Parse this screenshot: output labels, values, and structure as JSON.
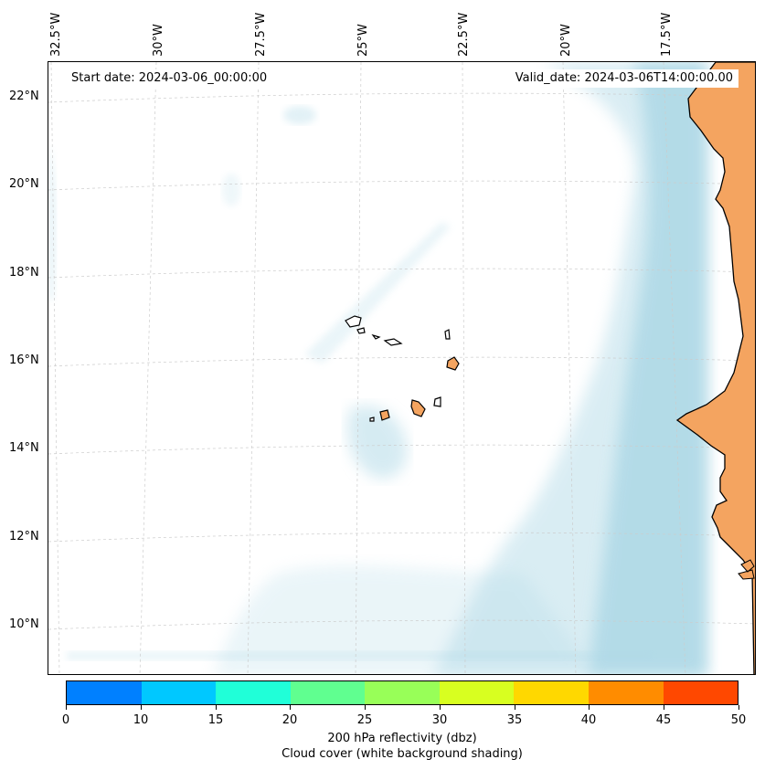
{
  "map": {
    "start_date": "Start date: 2024-03-06_00:00:00",
    "valid_date": "Valid_date: 2024-03-06T14:00:00.00",
    "lon_labels": [
      "32.5°W",
      "30°W",
      "27.5°W",
      "25°W",
      "22.5°W",
      "20°W",
      "17.5°W"
    ],
    "lat_labels": [
      "22°N",
      "20°N",
      "18°N",
      "16°N",
      "14°N",
      "12°N",
      "10°N"
    ],
    "colors": {
      "land": "#f4a460",
      "cloud": "#add8e6",
      "coast": "#000000",
      "grid": "#cccccc"
    }
  },
  "colorbar": {
    "ticks": [
      "0",
      "10",
      "15",
      "20",
      "25",
      "30",
      "35",
      "40",
      "45",
      "50"
    ],
    "colors": [
      "#0080ff",
      "#00c8ff",
      "#20ffd8",
      "#60ff90",
      "#98ff58",
      "#d8ff20",
      "#ffd800",
      "#ff8c00",
      "#ff4800"
    ],
    "label_line1": "200 hPa reflectivity (dbz)",
    "label_line2": "Cloud cover (white background shading)"
  }
}
